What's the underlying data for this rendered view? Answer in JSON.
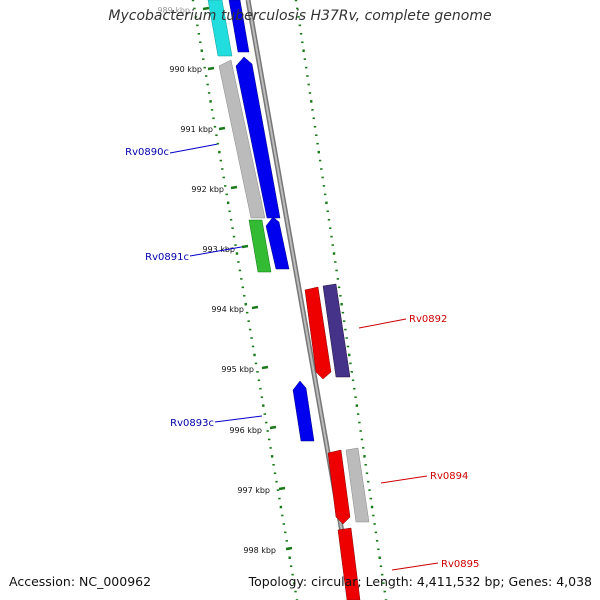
{
  "title": "Mycobacterium tuberculosis H37Rv, complete genome",
  "accession": "Accession: NC_000962",
  "summary": "Topology: circular; Length: 4,411,532 bp; Genes: 4,038",
  "ticks": [
    "989 kbp",
    "990 kbp",
    "991 kbp",
    "992 kbp",
    "993 kbp",
    "994 kbp",
    "995 kbp",
    "996 kbp",
    "997 kbp",
    "998 kbp"
  ],
  "gene_labels": [
    "Rv0890c",
    "Rv0891c",
    "Rv0892",
    "Rv0893c",
    "Rv0894",
    "Rv0895"
  ],
  "colors": {
    "backbone": "#888888",
    "dots": "#1a7a1a",
    "reverse_label": "#0000aa",
    "forward_label": "#cc0000",
    "cyan": "#22dddd",
    "blue": "#0000ee",
    "grey": "#bbbbbb",
    "green": "#33bb33",
    "red": "#ee0000",
    "purple": "#443388"
  }
}
